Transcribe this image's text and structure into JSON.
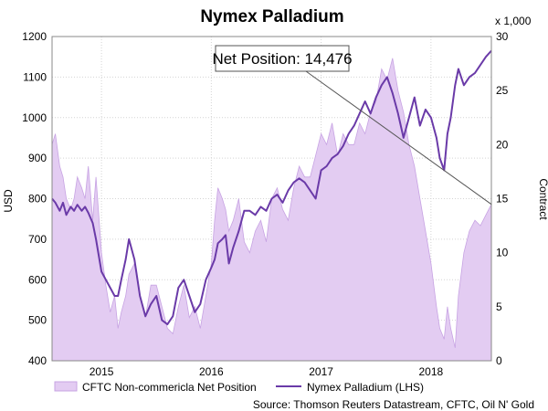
{
  "chart_data": {
    "type": "area",
    "title": "Nymex Palladium",
    "ylabel_left": "USD",
    "ylabel_right": "Contract",
    "right_axis_multiplier": "x 1,000",
    "ylim_left": [
      400,
      1200
    ],
    "ylim_right": [
      0,
      30
    ],
    "yticks_left": [
      400,
      500,
      600,
      700,
      800,
      900,
      1000,
      1100,
      1200
    ],
    "yticks_right": [
      0,
      5,
      10,
      15,
      20,
      25,
      30
    ],
    "xlim": [
      2014.55,
      2018.55
    ],
    "xticks": [
      {
        "x": 2015.0,
        "label": "2015"
      },
      {
        "x": 2016.0,
        "label": "2016"
      },
      {
        "x": 2017.0,
        "label": "2017"
      },
      {
        "x": 2018.0,
        "label": "2018"
      }
    ],
    "grid": true,
    "legend_position": "bottom",
    "colors": {
      "area_fill": "#e3ccf2",
      "area_edge": "#c7a3e3",
      "line": "#6a3aa8",
      "grid": "#d4d4d4"
    },
    "annotation": {
      "text": "Net Position: 14,476",
      "x": 2018.55,
      "y_right": 14.476
    },
    "series": [
      {
        "name": "CFTC Non-commericla Net Position",
        "kind": "area",
        "axis": "right",
        "x": [
          2014.55,
          2014.58,
          2014.62,
          2014.65,
          2014.68,
          2014.72,
          2014.75,
          2014.78,
          2014.82,
          2014.85,
          2014.88,
          2014.92,
          2014.95,
          2015.0,
          2015.04,
          2015.08,
          2015.12,
          2015.15,
          2015.18,
          2015.22,
          2015.25,
          2015.3,
          2015.35,
          2015.4,
          2015.45,
          2015.5,
          2015.55,
          2015.6,
          2015.65,
          2015.7,
          2015.75,
          2015.8,
          2015.85,
          2015.9,
          2015.95,
          2016.0,
          2016.03,
          2016.06,
          2016.1,
          2016.13,
          2016.16,
          2016.2,
          2016.25,
          2016.3,
          2016.35,
          2016.4,
          2016.45,
          2016.5,
          2016.55,
          2016.6,
          2016.65,
          2016.7,
          2016.75,
          2016.8,
          2016.85,
          2016.9,
          2016.95,
          2017.0,
          2017.05,
          2017.1,
          2017.15,
          2017.2,
          2017.25,
          2017.3,
          2017.35,
          2017.4,
          2017.45,
          2017.5,
          2017.55,
          2017.6,
          2017.65,
          2017.7,
          2017.75,
          2017.8,
          2017.85,
          2017.9,
          2017.95,
          2018.0,
          2018.05,
          2018.08,
          2018.12,
          2018.15,
          2018.18,
          2018.22,
          2018.25,
          2018.3,
          2018.35,
          2018.4,
          2018.45,
          2018.5,
          2018.55
        ],
        "values": [
          20,
          21,
          18,
          17,
          15,
          14,
          15,
          17,
          16,
          15,
          18,
          13,
          17,
          10,
          7,
          4.5,
          6,
          3,
          4.5,
          6,
          8,
          9,
          6,
          4,
          7,
          7,
          5,
          3,
          2.5,
          5,
          7,
          4,
          5,
          3,
          6,
          9,
          13,
          16,
          15,
          14,
          12,
          13,
          15,
          11,
          10,
          12,
          13,
          11,
          15,
          16,
          14,
          13,
          16,
          18,
          17,
          17,
          19,
          21,
          20,
          22,
          19,
          21,
          20,
          20,
          22,
          21,
          23,
          24,
          27,
          26,
          28,
          25,
          23,
          20,
          18,
          15,
          12,
          9,
          5,
          3,
          2,
          5,
          3,
          1.2,
          6,
          10,
          12,
          13,
          12.5,
          13.5,
          14.476
        ]
      },
      {
        "name": "Nymex Palladium (LHS)",
        "kind": "line",
        "axis": "left",
        "x": [
          2014.55,
          2014.58,
          2014.62,
          2014.65,
          2014.68,
          2014.72,
          2014.75,
          2014.78,
          2014.82,
          2014.85,
          2014.88,
          2014.92,
          2014.95,
          2015.0,
          2015.04,
          2015.08,
          2015.12,
          2015.15,
          2015.18,
          2015.22,
          2015.25,
          2015.3,
          2015.35,
          2015.4,
          2015.45,
          2015.5,
          2015.55,
          2015.6,
          2015.65,
          2015.7,
          2015.75,
          2015.8,
          2015.85,
          2015.9,
          2015.95,
          2016.0,
          2016.03,
          2016.06,
          2016.1,
          2016.13,
          2016.16,
          2016.2,
          2016.25,
          2016.3,
          2016.35,
          2016.4,
          2016.45,
          2016.5,
          2016.55,
          2016.6,
          2016.65,
          2016.7,
          2016.75,
          2016.8,
          2016.85,
          2016.9,
          2016.95,
          2017.0,
          2017.05,
          2017.1,
          2017.15,
          2017.2,
          2017.25,
          2017.3,
          2017.35,
          2017.4,
          2017.45,
          2017.5,
          2017.55,
          2017.6,
          2017.65,
          2017.7,
          2017.75,
          2017.8,
          2017.85,
          2017.9,
          2017.95,
          2018.0,
          2018.05,
          2018.08,
          2018.12,
          2018.15,
          2018.18,
          2018.22,
          2018.25,
          2018.3,
          2018.35,
          2018.4,
          2018.45,
          2018.5,
          2018.55
        ],
        "values": [
          800,
          790,
          770,
          790,
          760,
          780,
          770,
          785,
          770,
          780,
          765,
          740,
          700,
          620,
          600,
          580,
          560,
          560,
          600,
          650,
          700,
          650,
          560,
          510,
          540,
          560,
          500,
          490,
          510,
          580,
          600,
          560,
          520,
          540,
          600,
          630,
          650,
          690,
          700,
          710,
          640,
          680,
          720,
          770,
          770,
          760,
          780,
          770,
          800,
          810,
          790,
          820,
          840,
          850,
          840,
          820,
          800,
          870,
          880,
          900,
          910,
          930,
          960,
          980,
          1010,
          1040,
          1010,
          1050,
          1080,
          1100,
          1060,
          1010,
          950,
          1000,
          1050,
          980,
          1020,
          1000,
          950,
          900,
          870,
          960,
          1000,
          1080,
          1120,
          1080,
          1100,
          1110,
          1130,
          1150,
          1165
        ]
      }
    ]
  },
  "legend": {
    "area_label": "CFTC Non-commericla Net Position",
    "line_label": "Nymex Palladium (LHS)"
  },
  "source": "Source: Thomson Reuters Datastream, CFTC, Oil N' Gold"
}
